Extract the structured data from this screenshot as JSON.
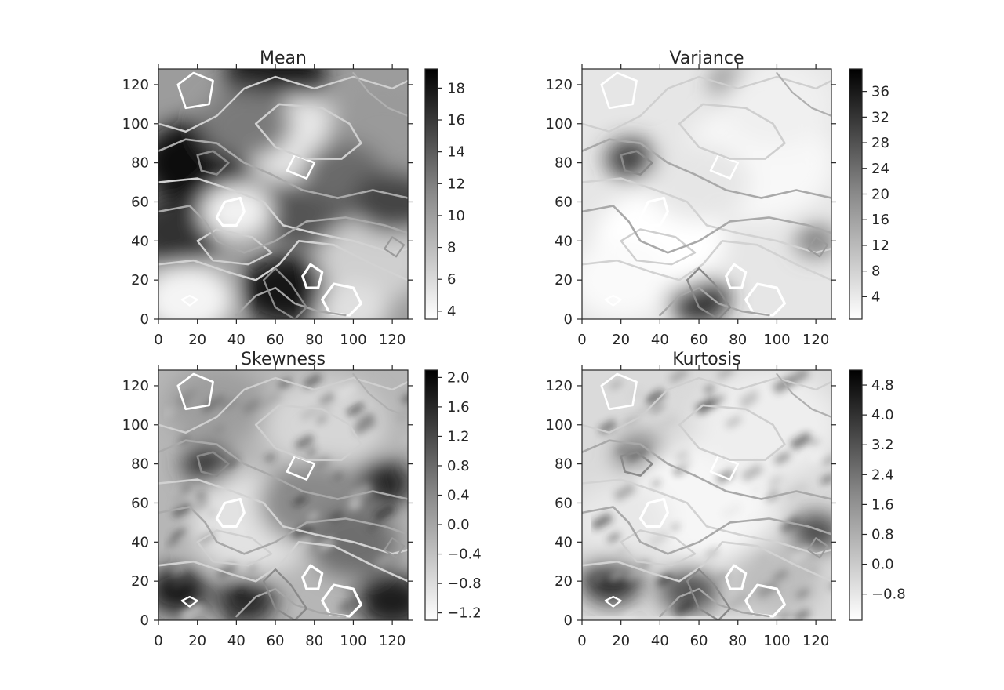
{
  "chart_data": [
    {
      "type": "heatmap",
      "title": "Mean",
      "xlabel": "",
      "ylabel": "",
      "xlim": [
        0,
        128
      ],
      "ylim": [
        0,
        128
      ],
      "x_ticks": [
        "0",
        "20",
        "40",
        "60",
        "80",
        "100",
        "120"
      ],
      "y_ticks": [
        "0",
        "20",
        "40",
        "60",
        "80",
        "100",
        "120"
      ],
      "colorbar": {
        "range": [
          3.5,
          19.2
        ],
        "ticks": [
          "4",
          "6",
          "8",
          "10",
          "12",
          "14",
          "16",
          "18"
        ],
        "tick_values": [
          4,
          6,
          8,
          10,
          12,
          14,
          16,
          18
        ]
      },
      "colormap": "white-to-black",
      "overlay": "contour lines (white / light gray / dark gray)"
    },
    {
      "type": "heatmap",
      "title": "Variance",
      "xlabel": "",
      "ylabel": "",
      "xlim": [
        0,
        128
      ],
      "ylim": [
        0,
        128
      ],
      "x_ticks": [
        "0",
        "20",
        "40",
        "60",
        "80",
        "100",
        "120"
      ],
      "y_ticks": [
        "0",
        "20",
        "40",
        "60",
        "80",
        "100",
        "120"
      ],
      "colorbar": {
        "range": [
          0.5,
          39.5
        ],
        "ticks": [
          "4",
          "8",
          "12",
          "16",
          "20",
          "24",
          "28",
          "32",
          "36"
        ],
        "tick_values": [
          4,
          8,
          12,
          16,
          20,
          24,
          28,
          32,
          36
        ]
      },
      "colormap": "white-to-black",
      "overlay": "contour lines (white / light gray / dark gray)"
    },
    {
      "type": "heatmap",
      "title": "Skewness",
      "xlabel": "",
      "ylabel": "",
      "xlim": [
        0,
        128
      ],
      "ylim": [
        0,
        128
      ],
      "x_ticks": [
        "0",
        "20",
        "40",
        "60",
        "80",
        "100",
        "120"
      ],
      "y_ticks": [
        "0",
        "20",
        "40",
        "60",
        "80",
        "100",
        "120"
      ],
      "colorbar": {
        "range": [
          -1.3,
          2.1
        ],
        "ticks": [
          "2.0",
          "1.6",
          "1.2",
          "0.8",
          "0.4",
          "0.0",
          "−0.4",
          "−0.8",
          "−1.2"
        ],
        "tick_values": [
          2.0,
          1.6,
          1.2,
          0.8,
          0.4,
          0.0,
          -0.4,
          -0.8,
          -1.2
        ]
      },
      "colormap": "white-to-black",
      "overlay": "contour lines (white / light gray / dark gray)"
    },
    {
      "type": "heatmap",
      "title": "Kurtosis",
      "xlabel": "",
      "ylabel": "",
      "xlim": [
        0,
        128
      ],
      "ylim": [
        0,
        128
      ],
      "x_ticks": [
        "0",
        "20",
        "40",
        "60",
        "80",
        "100",
        "120"
      ],
      "y_ticks": [
        "0",
        "20",
        "40",
        "60",
        "80",
        "100",
        "120"
      ],
      "colorbar": {
        "range": [
          -1.5,
          5.2
        ],
        "ticks": [
          "4.8",
          "4.0",
          "3.2",
          "2.4",
          "1.6",
          "0.8",
          "0.0",
          "−0.8"
        ],
        "tick_values": [
          4.8,
          4.0,
          3.2,
          2.4,
          1.6,
          0.8,
          0.0,
          -0.8
        ]
      },
      "colormap": "white-to-black",
      "overlay": "contour lines (white / light gray / dark gray)"
    }
  ]
}
